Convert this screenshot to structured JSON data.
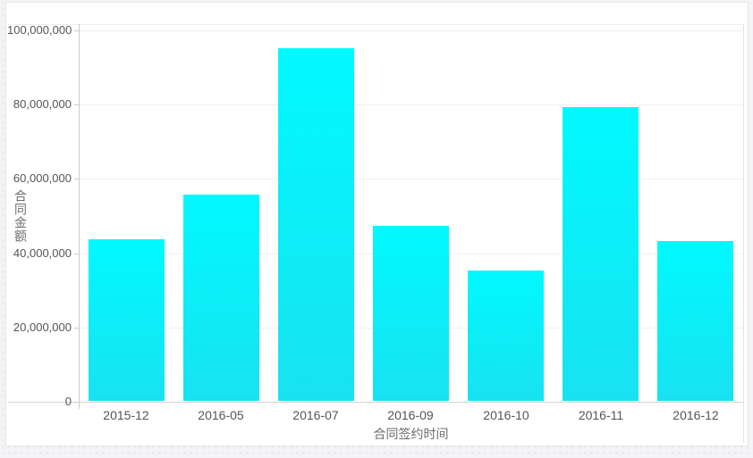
{
  "page": {
    "background_color": "#f4f4f6",
    "card_color": "#ffffff"
  },
  "chart_data": {
    "type": "bar",
    "title": "",
    "categories": [
      "2015-12",
      "2016-05",
      "2016-07",
      "2016-09",
      "2016-10",
      "2016-11",
      "2016-12"
    ],
    "values": [
      43500000,
      55500000,
      95000000,
      47000000,
      35000000,
      79000000,
      43000000
    ],
    "xlabel": "合同签约时间",
    "ylabel": "合同金额",
    "ylim": [
      0,
      100000000
    ],
    "ytick_interval": 20000000,
    "ytick_labels": [
      "0",
      "20,000,000",
      "40,000,000",
      "60,000,000",
      "80,000,000",
      "100,000,000"
    ],
    "grid": true,
    "legend": "none",
    "colors": {
      "bar_gradient_top": "#00f9ff",
      "bar_gradient_bottom": "#18e2f1",
      "gridline": "#f0f0f2",
      "axis_line": "#cccccc",
      "tick_text": "#555555",
      "axis_title_text": "#6e6e6e"
    }
  }
}
